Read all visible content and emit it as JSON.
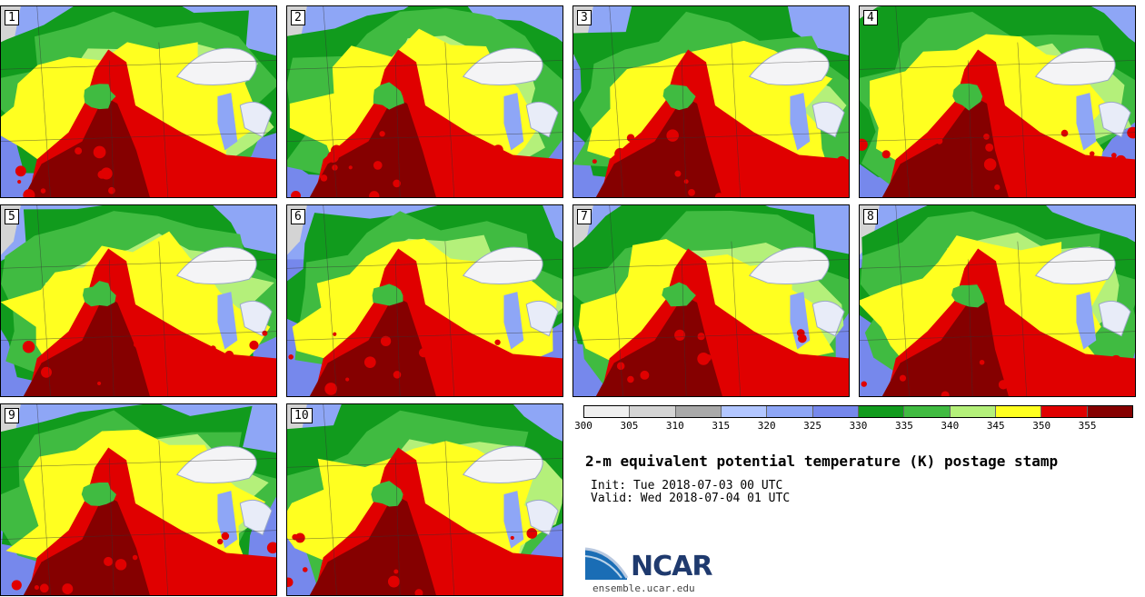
{
  "panels": [
    "1",
    "2",
    "3",
    "4",
    "5",
    "6",
    "7",
    "8",
    "9",
    "10"
  ],
  "colorbar": {
    "ticks": [
      "300",
      "305",
      "310",
      "315",
      "320",
      "325",
      "330",
      "335",
      "340",
      "345",
      "350",
      "355"
    ],
    "colors": [
      "#efefef",
      "#d4d4d4",
      "#a9a9a9",
      "#b2c6ff",
      "#8ea6f6",
      "#7688ec",
      "#119b1d",
      "#40bb41",
      "#b4f07a",
      "#ffff20",
      "#e00000",
      "#850000"
    ]
  },
  "title": "2-m equivalent potential temperature (K) postage stamp",
  "init": "Init: Tue 2018-07-03 00 UTC",
  "valid": "Valid: Wed 2018-07-04 01 UTC",
  "logo": {
    "name": "NCAR",
    "url_text": "ensemble.ucar.edu"
  }
}
